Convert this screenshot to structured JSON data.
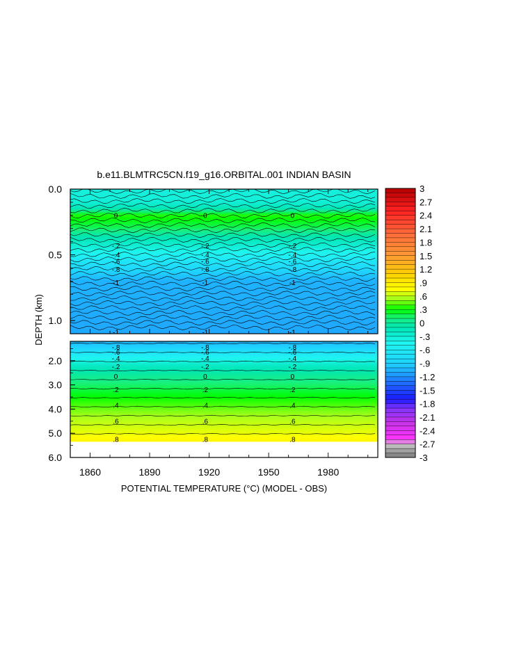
{
  "chart_data": {
    "type": "heatmap",
    "subtype": "filled-contour time-depth section",
    "title": "b.e11.BLMTRC5CN.f19_g16.ORBITAL.001 INDIAN BASIN",
    "xlabel": "POTENTIAL TEMPERATURE (°C) (MODEL - OBS)",
    "ylabel": "DEPTH (km)",
    "xlim": [
      1850,
      2005
    ],
    "x_ticks": [
      "1860",
      "1890",
      "1920",
      "1950",
      "1980"
    ],
    "panels": [
      {
        "name": "upper",
        "ylim": [
          0.0,
          1.1
        ],
        "y_ticks": [
          "0.0",
          "0.5",
          "1.0"
        ],
        "depth_profile": [
          {
            "depth": 0.0,
            "value": -0.35
          },
          {
            "depth": 0.1,
            "value": -0.3
          },
          {
            "depth": 0.15,
            "value": -0.1
          },
          {
            "depth": 0.2,
            "value": 0.35
          },
          {
            "depth": 0.25,
            "value": 0.25
          },
          {
            "depth": 0.3,
            "value": 0.15
          },
          {
            "depth": 0.35,
            "value": -0.05
          },
          {
            "depth": 0.4,
            "value": -0.2
          },
          {
            "depth": 0.45,
            "value": -0.35
          },
          {
            "depth": 0.5,
            "value": -0.5
          },
          {
            "depth": 0.55,
            "value": -0.65
          },
          {
            "depth": 0.6,
            "value": -0.8
          },
          {
            "depth": 0.65,
            "value": -0.95
          },
          {
            "depth": 0.7,
            "value": -1.05
          },
          {
            "depth": 1.1,
            "value": -1.1
          }
        ],
        "contour_labels": [
          {
            "label": "0",
            "depth": 0.2
          },
          {
            "label": "-.2",
            "depth": 0.43
          },
          {
            "label": "-.4",
            "depth": 0.5
          },
          {
            "label": "-.6",
            "depth": 0.55
          },
          {
            "label": "-.8",
            "depth": 0.61
          },
          {
            "label": "-1",
            "depth": 0.71
          },
          {
            "label": "-1",
            "depth": 1.09
          }
        ]
      },
      {
        "name": "lower",
        "ylim": [
          1.2,
          6.0
        ],
        "y_ticks": [
          "2.0",
          "3.0",
          "4.0",
          "5.0",
          "6.0"
        ],
        "depth_profile": [
          {
            "depth": 1.2,
            "value": -1.05
          },
          {
            "depth": 1.5,
            "value": -0.85
          },
          {
            "depth": 1.8,
            "value": -0.55
          },
          {
            "depth": 2.2,
            "value": -0.2
          },
          {
            "depth": 2.6,
            "value": 0.0
          },
          {
            "depth": 3.2,
            "value": 0.2
          },
          {
            "depth": 3.8,
            "value": 0.4
          },
          {
            "depth": 4.3,
            "value": 0.55
          },
          {
            "depth": 5.0,
            "value": 0.7
          },
          {
            "depth": 5.3,
            "value": 0.8
          }
        ],
        "data_bottom": 5.35,
        "contour_labels": [
          {
            "label": "-.8",
            "depth": 1.45
          },
          {
            "label": "-.6",
            "depth": 1.65
          },
          {
            "label": "-.4",
            "depth": 1.9
          },
          {
            "label": "-.2",
            "depth": 2.25
          },
          {
            "label": "0",
            "depth": 2.65
          },
          {
            "label": ".2",
            "depth": 3.2
          },
          {
            "label": ".4",
            "depth": 3.85
          },
          {
            "label": ".6",
            "depth": 4.5
          },
          {
            "label": ".8",
            "depth": 5.25
          }
        ]
      }
    ],
    "label_years": [
      1873,
      1918,
      1962
    ],
    "colorbar": {
      "range": [
        -3,
        3
      ],
      "ticks": [
        "3",
        "2.7",
        "2.4",
        "2.1",
        "1.8",
        "1.5",
        "1.2",
        ".9",
        ".6",
        ".3",
        "0",
        "-.3",
        "-.6",
        "-.9",
        "-1.2",
        "-1.5",
        "-1.8",
        "-2.1",
        "-2.4",
        "-2.7",
        "-3"
      ],
      "tick_values": [
        3,
        2.7,
        2.4,
        2.1,
        1.8,
        1.5,
        1.2,
        0.9,
        0.6,
        0.3,
        0,
        -0.3,
        -0.6,
        -0.9,
        -1.2,
        -1.5,
        -1.8,
        -2.1,
        -2.4,
        -2.7,
        -3
      ],
      "color_stops": [
        {
          "value": -3.0,
          "color": "#7a7a7a"
        },
        {
          "value": -2.7,
          "color": "#c8c8c8"
        },
        {
          "value": -2.6,
          "color": "#ff33ff"
        },
        {
          "value": -2.2,
          "color": "#c233e6"
        },
        {
          "value": -1.9,
          "color": "#7f33ff"
        },
        {
          "value": -1.7,
          "color": "#1a1aff"
        },
        {
          "value": -1.4,
          "color": "#1f5fff"
        },
        {
          "value": -1.1,
          "color": "#1fa8ff"
        },
        {
          "value": -0.9,
          "color": "#1fd2ff"
        },
        {
          "value": -0.45,
          "color": "#1ff5f0"
        },
        {
          "value": -0.1,
          "color": "#00e6b4"
        },
        {
          "value": 0.1,
          "color": "#1aef80"
        },
        {
          "value": 0.3,
          "color": "#00ff00"
        },
        {
          "value": 0.55,
          "color": "#a8ff1a"
        },
        {
          "value": 0.75,
          "color": "#ffff00"
        },
        {
          "value": 1.05,
          "color": "#ffd700"
        },
        {
          "value": 1.5,
          "color": "#ff9a33"
        },
        {
          "value": 2.0,
          "color": "#ff6a3a"
        },
        {
          "value": 2.5,
          "color": "#ff2222"
        },
        {
          "value": 3.0,
          "color": "#b30000"
        }
      ]
    }
  }
}
